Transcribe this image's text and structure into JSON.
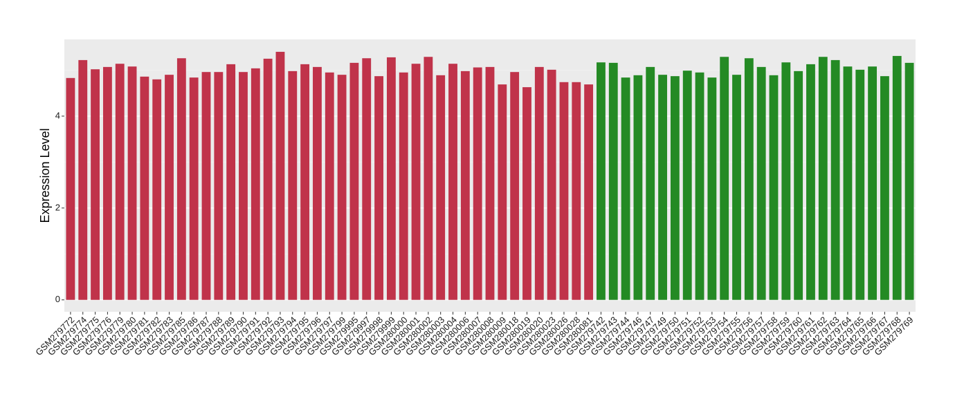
{
  "chart_data": {
    "type": "bar",
    "y_label": "Expression Level",
    "ylim": [
      -0.26,
      5.67
    ],
    "yticks": [
      0,
      2,
      4
    ],
    "grid": true,
    "series": [
      {
        "color": "#c0334a",
        "categories": [
          "GSM279772",
          "GSM279774",
          "GSM279775",
          "GSM279776",
          "GSM279779",
          "GSM279780",
          "GSM279781",
          "GSM279782",
          "GSM279783",
          "GSM279785",
          "GSM279786",
          "GSM279787",
          "GSM279788",
          "GSM279789",
          "GSM279790",
          "GSM279791",
          "GSM279792",
          "GSM279793",
          "GSM279794",
          "GSM279795",
          "GSM279796",
          "GSM279797",
          "GSM279799",
          "GSM279995",
          "GSM279997",
          "GSM279998",
          "GSM279999",
          "GSM280000",
          "GSM280001",
          "GSM280002",
          "GSM280003",
          "GSM280004",
          "GSM280006",
          "GSM280007",
          "GSM280008",
          "GSM280009",
          "GSM280018",
          "GSM280019",
          "GSM280020",
          "GSM280023",
          "GSM280026",
          "GSM280028",
          "GSM280081"
        ],
        "values": [
          4.83,
          5.22,
          5.02,
          5.07,
          5.14,
          5.08,
          4.86,
          4.8,
          4.9,
          5.26,
          4.84,
          4.96,
          4.96,
          5.13,
          4.96,
          5.04,
          5.25,
          5.4,
          4.98,
          5.13,
          5.07,
          4.95,
          4.9,
          5.16,
          5.26,
          4.87,
          5.28,
          4.95,
          5.14,
          5.29,
          4.89,
          5.14,
          4.98,
          5.06,
          5.07,
          4.69,
          4.96,
          4.63,
          5.07,
          5.01,
          4.74,
          4.74,
          4.69
        ]
      },
      {
        "color": "#248a24",
        "categories": [
          "GSM279742",
          "GSM279743",
          "GSM279744",
          "GSM279746",
          "GSM279747",
          "GSM279749",
          "GSM279750",
          "GSM279751",
          "GSM279752",
          "GSM279753",
          "GSM279754",
          "GSM279755",
          "GSM279756",
          "GSM279757",
          "GSM279758",
          "GSM279759",
          "GSM279760",
          "GSM279761",
          "GSM279762",
          "GSM279763",
          "GSM279764",
          "GSM279765",
          "GSM279766",
          "GSM279767",
          "GSM279768",
          "GSM279769"
        ],
        "values": [
          5.17,
          5.16,
          4.84,
          4.89,
          5.07,
          4.9,
          4.87,
          4.99,
          4.95,
          4.84,
          5.29,
          4.9,
          5.26,
          5.07,
          4.89,
          5.17,
          4.98,
          5.13,
          5.29,
          5.22,
          5.08,
          5.01,
          5.08,
          4.87,
          5.31,
          5.16
        ]
      }
    ]
  }
}
